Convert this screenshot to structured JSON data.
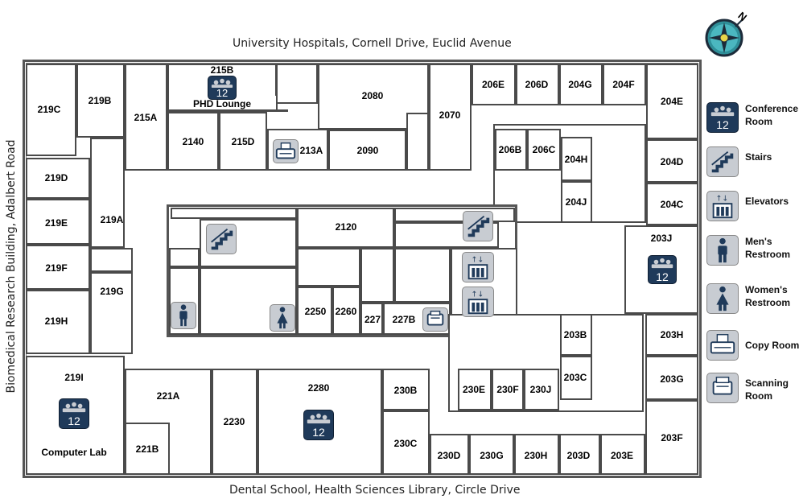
{
  "captions": {
    "top": "University Hospitals, Cornell Drive, Euclid Avenue",
    "bottom": "Dental School, Health Sciences Library, Circle Drive",
    "left": "Biomedical Research Building, Adalbert Road"
  },
  "compass": {
    "north_label": "N"
  },
  "rooms": {
    "r219c": "219C",
    "r219b": "219B",
    "r215a": "215A",
    "r215b": "215B",
    "phd_lounge": "PHD Lounge",
    "r2140": "2140",
    "r215d": "215D",
    "r213a": "213A",
    "r2080": "2080",
    "r2090": "2090",
    "r2070": "2070",
    "r206e": "206E",
    "r206d": "206D",
    "r204g": "204G",
    "r204f": "204F",
    "r204e": "204E",
    "r206b": "206B",
    "r206c": "206C",
    "r204h": "204H",
    "r204j": "204J",
    "r204d": "204D",
    "r204c": "204C",
    "r219d": "219D",
    "r219e": "219E",
    "r219a": "219A",
    "r219f": "219F",
    "r219g": "219G",
    "r219h": "219H",
    "r2120": "2120",
    "r2250": "2250",
    "r2260": "2260",
    "r227": "227",
    "r227b": "227B",
    "r203j": "203J",
    "r203b": "203B",
    "r203c": "203C",
    "r203h": "203H",
    "r203g": "203G",
    "r203f": "203F",
    "r219i": "219I",
    "computer_lab": "Computer Lab",
    "r221a": "221A",
    "r221b": "221B",
    "r2230": "2230",
    "r2280": "2280",
    "r230b": "230B",
    "r230c": "230C",
    "r230e": "230E",
    "r230f": "230F",
    "r230j": "230J",
    "r230d": "230D",
    "r230g": "230G",
    "r230h": "230H",
    "r203d": "203D",
    "r203e": "203E"
  },
  "capacity": {
    "phd_lounge": "12",
    "r203j": "12",
    "computer_lab": "12",
    "r2280": "12",
    "legend": "12"
  },
  "legend": {
    "conference": "Conference Room",
    "stairs": "Stairs",
    "elevators": "Elevators",
    "mens": "Men's Restroom",
    "womens": "Women's Restroom",
    "copy": "Copy Room",
    "scanning": "Scanning Room"
  },
  "colors": {
    "wall": "#4a4a4a",
    "icon_dark": "#1f3a5a",
    "icon_light": "#c8ccd2",
    "compass_teal": "#3aa6b0",
    "compass_yellow": "#e8d44a"
  }
}
